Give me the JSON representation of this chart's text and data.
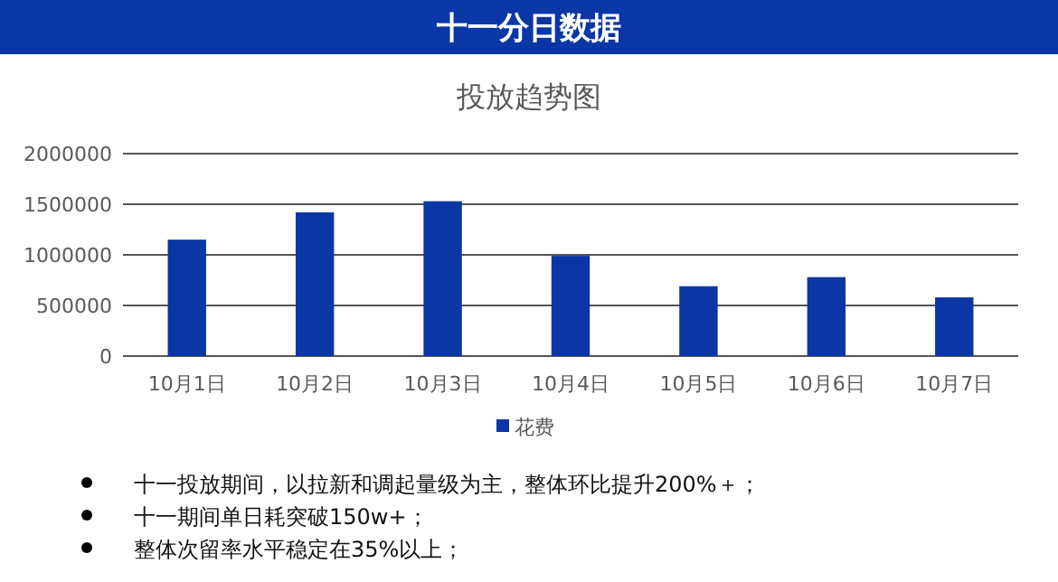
{
  "chart_data": {
    "type": "bar",
    "title": "十一分日数据",
    "subtitle": "投放趋势图",
    "categories": [
      "10月1日",
      "10月2日",
      "10月3日",
      "10月4日",
      "10月5日",
      "10月6日",
      "10月7日"
    ],
    "series": [
      {
        "name": "花费",
        "color": "#0a37a5",
        "values": [
          1150000,
          1420000,
          1530000,
          990000,
          690000,
          780000,
          580000
        ]
      }
    ],
    "ylim": [
      0,
      2000000
    ],
    "yticks": [
      0,
      500000,
      1000000,
      1500000,
      2000000
    ],
    "grid": "y",
    "legend": "bottom",
    "annotations": [
      "十一投放期间，以拉新和调起量级为主，整体环比提升200%＋；",
      "十一期间单日耗突破150w+；",
      "整体次留率水平稳定在35%以上；"
    ]
  }
}
